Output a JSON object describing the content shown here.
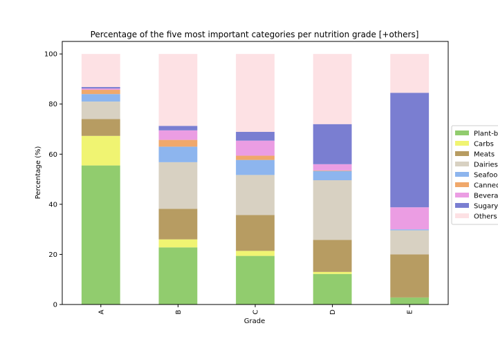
{
  "chart_data": {
    "type": "bar",
    "stacked": true,
    "title": "Percentage of the five most important categories per nutrition grade [+others]",
    "xlabel": "Grade",
    "ylabel": "Percentage (%)",
    "ylim": [
      0,
      105
    ],
    "yticks": [
      0,
      20,
      40,
      60,
      80,
      100
    ],
    "categories": [
      "A",
      "B",
      "C",
      "D",
      "E"
    ],
    "legend_position": "right-center",
    "legend_labels": [
      "Plant-b",
      "Carbs",
      "Meats",
      "Dairies",
      "Seafoo",
      "Canned",
      "Bevera",
      "Sugary",
      "Others"
    ],
    "series": [
      {
        "name": "Plant-based",
        "color": "#91cc6e",
        "values": [
          55.5,
          22.8,
          19.4,
          12.2,
          2.8
        ]
      },
      {
        "name": "Carbs",
        "color": "#f0f472",
        "values": [
          11.8,
          3.2,
          2.0,
          0.8,
          0.0
        ]
      },
      {
        "name": "Meats",
        "color": "#b79c62",
        "values": [
          6.7,
          12.2,
          14.3,
          12.8,
          17.2
        ]
      },
      {
        "name": "Dairies",
        "color": "#d8d1c2",
        "values": [
          7.0,
          18.6,
          16.0,
          23.8,
          9.6
        ]
      },
      {
        "name": "Seafood",
        "color": "#8db5ee",
        "values": [
          3.0,
          6.2,
          6.0,
          3.7,
          0.4
        ]
      },
      {
        "name": "Canned",
        "color": "#f0a86b",
        "values": [
          1.7,
          2.7,
          1.7,
          0.2,
          0.0
        ]
      },
      {
        "name": "Beverages",
        "color": "#eb9de3",
        "values": [
          0.5,
          3.8,
          6.0,
          2.5,
          8.8
        ]
      },
      {
        "name": "Sugary",
        "color": "#7a7ed1",
        "values": [
          0.6,
          1.8,
          3.5,
          16.0,
          45.7
        ]
      },
      {
        "name": "Others",
        "color": "#fde1e4",
        "values": [
          13.2,
          28.7,
          31.1,
          28.0,
          15.5
        ]
      }
    ]
  }
}
